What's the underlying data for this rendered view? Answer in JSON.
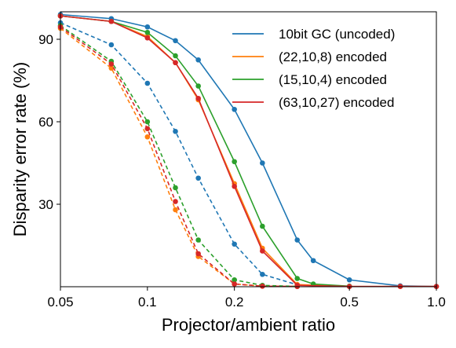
{
  "chart_data": {
    "type": "line",
    "xlabel": "Projector/ambient ratio",
    "ylabel": "Disparity error rate (%)",
    "x_scale": "log",
    "xlim": [
      0.05,
      1.0
    ],
    "ylim": [
      0,
      100
    ],
    "x_ticks": [
      0.05,
      0.1,
      0.2,
      0.5,
      1.0
    ],
    "x_tick_labels": [
      "0.05",
      "0.1",
      "0.2",
      "0.5",
      "1.0"
    ],
    "y_ticks": [
      30,
      60,
      90
    ],
    "y_tick_labels": [
      "30",
      "60",
      "90"
    ],
    "grid": false,
    "legend_position": "top-right",
    "line_styles": [
      "solid",
      "dashed"
    ],
    "series": [
      {
        "name": "10bit GC (uncoded)",
        "color": "#1f77b4",
        "solid": [
          [
            0.05,
            99
          ],
          [
            0.075,
            97.5
          ],
          [
            0.1,
            94.5
          ],
          [
            0.125,
            89.5
          ],
          [
            0.15,
            82.5
          ],
          [
            0.2,
            64.5
          ],
          [
            0.25,
            45
          ],
          [
            0.33,
            17
          ],
          [
            0.375,
            9.5
          ],
          [
            0.5,
            2.5
          ],
          [
            0.75,
            0.3
          ],
          [
            1.0,
            0.1
          ]
        ],
        "dashed": [
          [
            0.05,
            96
          ],
          [
            0.075,
            88
          ],
          [
            0.1,
            74
          ],
          [
            0.125,
            56.5
          ],
          [
            0.15,
            39.5
          ],
          [
            0.2,
            15.5
          ],
          [
            0.25,
            4.5
          ],
          [
            0.33,
            0.7
          ],
          [
            0.5,
            0.1
          ]
        ]
      },
      {
        "name": "(22,10,8) encoded",
        "color": "#ff7f0e",
        "solid": [
          [
            0.05,
            98.5
          ],
          [
            0.075,
            96.5
          ],
          [
            0.1,
            91
          ],
          [
            0.125,
            81.5
          ],
          [
            0.15,
            68
          ],
          [
            0.2,
            37.5
          ],
          [
            0.25,
            14
          ],
          [
            0.33,
            0.8
          ],
          [
            0.5,
            0.1
          ],
          [
            0.75,
            0.1
          ],
          [
            1.0,
            0.1
          ]
        ],
        "dashed": [
          [
            0.05,
            94
          ],
          [
            0.075,
            79.5
          ],
          [
            0.1,
            54.5
          ],
          [
            0.125,
            28
          ],
          [
            0.15,
            11
          ],
          [
            0.2,
            1
          ],
          [
            0.25,
            0.2
          ],
          [
            0.33,
            0.1
          ]
        ]
      },
      {
        "name": "(15,10,4) encoded",
        "color": "#2ca02c",
        "solid": [
          [
            0.05,
            98.5
          ],
          [
            0.075,
            96.5
          ],
          [
            0.1,
            92.5
          ],
          [
            0.125,
            84
          ],
          [
            0.15,
            73
          ],
          [
            0.2,
            45.5
          ],
          [
            0.25,
            22
          ],
          [
            0.33,
            3
          ],
          [
            0.375,
            1
          ],
          [
            0.5,
            0.2
          ]
        ],
        "dashed": [
          [
            0.05,
            95
          ],
          [
            0.075,
            82
          ],
          [
            0.1,
            60
          ],
          [
            0.125,
            36
          ],
          [
            0.15,
            17
          ],
          [
            0.2,
            2.5
          ],
          [
            0.25,
            0.5
          ],
          [
            0.33,
            0.1
          ]
        ]
      },
      {
        "name": "(63,10,27) encoded",
        "color": "#d62728",
        "solid": [
          [
            0.05,
            98.5
          ],
          [
            0.075,
            96.5
          ],
          [
            0.1,
            90.5
          ],
          [
            0.125,
            81.5
          ],
          [
            0.15,
            68.5
          ],
          [
            0.2,
            36.5
          ],
          [
            0.25,
            13
          ],
          [
            0.33,
            0.5
          ],
          [
            0.5,
            0.1
          ],
          [
            0.75,
            0.1
          ],
          [
            1.0,
            0.1
          ]
        ],
        "dashed": [
          [
            0.05,
            94.5
          ],
          [
            0.075,
            81
          ],
          [
            0.1,
            57.5
          ],
          [
            0.125,
            31
          ],
          [
            0.15,
            12
          ],
          [
            0.2,
            1
          ],
          [
            0.25,
            0.2
          ],
          [
            0.33,
            0.1
          ]
        ]
      }
    ]
  }
}
